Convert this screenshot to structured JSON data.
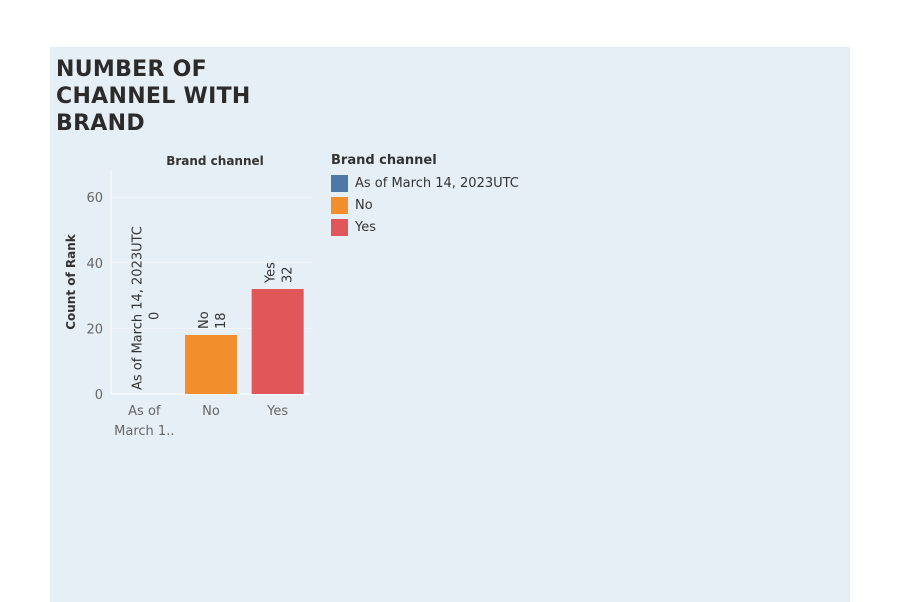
{
  "dashboard": {
    "title": "NUMBER OF CHANNEL WITH BRAND"
  },
  "legend": {
    "title": "Brand channel",
    "items": [
      {
        "label": "As of March 14, 2023UTC",
        "color": "#4e79a7"
      },
      {
        "label": "No",
        "color": "#f28e2b"
      },
      {
        "label": "Yes",
        "color": "#e15759"
      }
    ]
  },
  "chart_data": {
    "type": "bar",
    "title": "",
    "column_header": "Brand channel",
    "ylabel": "Count of Rank",
    "xlabel": "",
    "categories": [
      "As of March 14, 2023UTC",
      "No",
      "Yes"
    ],
    "category_tick_labels": [
      "As of\nMarch 1..",
      "No",
      "Yes"
    ],
    "values": [
      0,
      18,
      32
    ],
    "colors": [
      "#4e79a7",
      "#f28e2b",
      "#e15759"
    ],
    "ylim": [
      0,
      68
    ],
    "yticks": [
      0,
      20,
      40,
      60
    ],
    "grid": true,
    "legend_position": "right"
  }
}
